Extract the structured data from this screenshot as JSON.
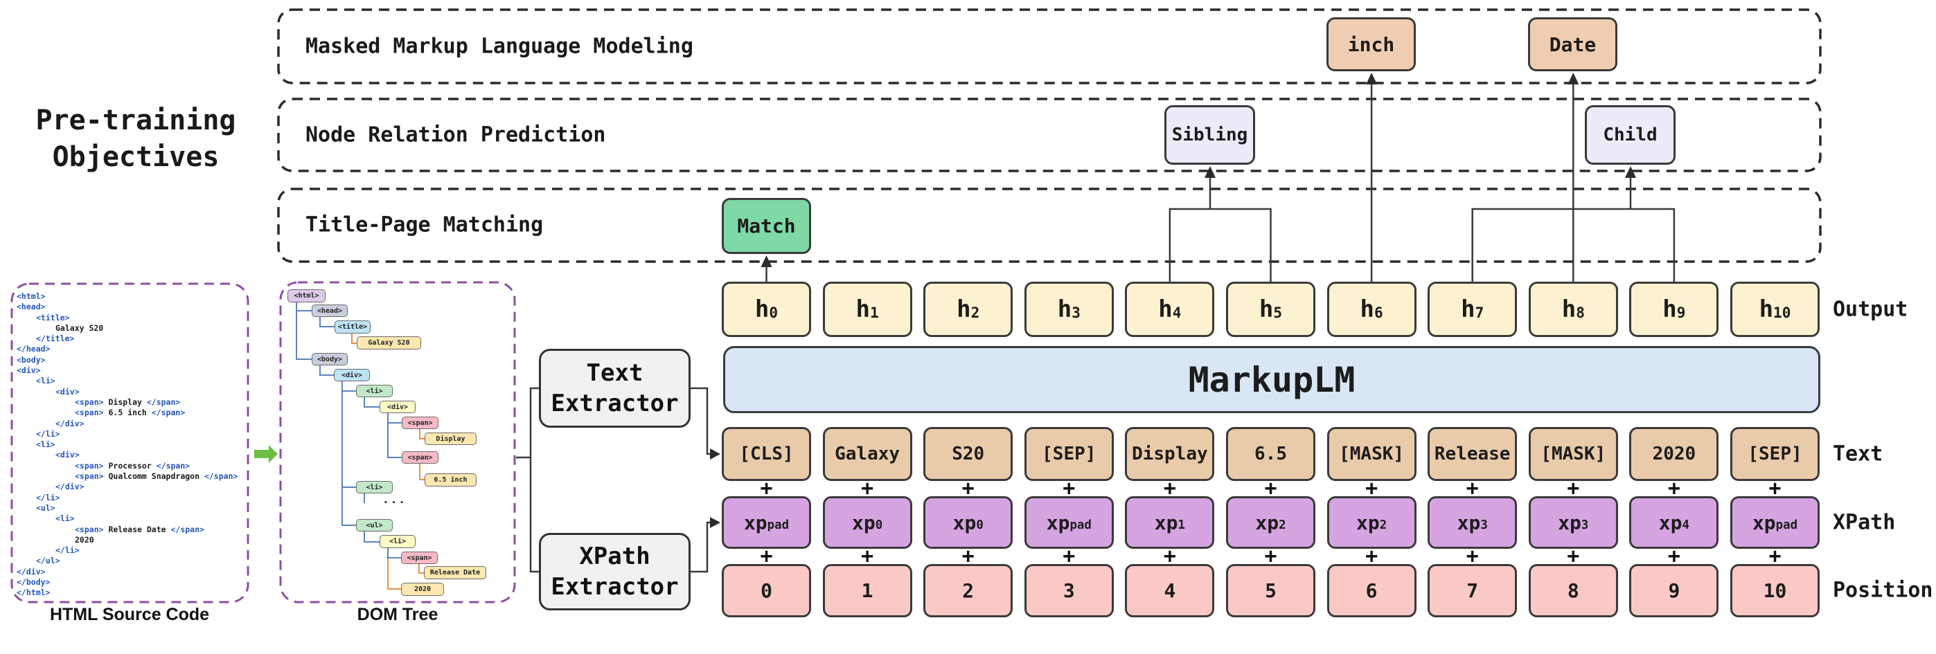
{
  "figure_title": {
    "line1": "Pre-training",
    "line2": "Objectives"
  },
  "objectives": [
    {
      "label": "Masked Markup Language Modeling"
    },
    {
      "label": "Node Relation Prediction"
    },
    {
      "label": "Title-Page Matching"
    }
  ],
  "predictions": {
    "match": "Match",
    "sibling": "Sibling",
    "child": "Child",
    "inch": "inch",
    "date": "Date"
  },
  "model_name": "MarkupLM",
  "extractors": {
    "text_line1": "Text",
    "text_line2": "Extractor",
    "xpath_line1": "XPath",
    "xpath_line2": "Extractor"
  },
  "row_labels": {
    "output": "Output",
    "text": "Text",
    "xpath": "XPath",
    "position": "Position"
  },
  "plus_symbol": "+",
  "tokens": {
    "output": [
      [
        "h",
        "0"
      ],
      [
        "h",
        "1"
      ],
      [
        "h",
        "2"
      ],
      [
        "h",
        "3"
      ],
      [
        "h",
        "4"
      ],
      [
        "h",
        "5"
      ],
      [
        "h",
        "6"
      ],
      [
        "h",
        "7"
      ],
      [
        "h",
        "8"
      ],
      [
        "h",
        "9"
      ],
      [
        "h",
        "10"
      ]
    ],
    "text": [
      "[CLS]",
      "Galaxy",
      "S20",
      "[SEP]",
      "Display",
      "6.5",
      "[MASK]",
      "Release",
      "[MASK]",
      "2020",
      "[SEP]"
    ],
    "xpath": [
      [
        "xp",
        "pad"
      ],
      [
        "xp",
        "0"
      ],
      [
        "xp",
        "0"
      ],
      [
        "xp",
        "pad"
      ],
      [
        "xp",
        "1"
      ],
      [
        "xp",
        "2"
      ],
      [
        "xp",
        "2"
      ],
      [
        "xp",
        "3"
      ],
      [
        "xp",
        "3"
      ],
      [
        "xp",
        "4"
      ],
      [
        "xp",
        "pad"
      ]
    ],
    "position": [
      "0",
      "1",
      "2",
      "3",
      "4",
      "5",
      "6",
      "7",
      "8",
      "9",
      "10"
    ]
  },
  "html_panel": {
    "caption": "HTML Source Code",
    "code": [
      {
        "ind": 0,
        "seg": [
          [
            "tag",
            "<html>"
          ]
        ]
      },
      {
        "ind": 0,
        "seg": [
          [
            "tag",
            "<head>"
          ]
        ]
      },
      {
        "ind": 1,
        "seg": [
          [
            "tag",
            "<title>"
          ]
        ]
      },
      {
        "ind": 2,
        "seg": [
          [
            "txt",
            "Galaxy S20"
          ]
        ]
      },
      {
        "ind": 1,
        "seg": [
          [
            "tag",
            "</title>"
          ]
        ]
      },
      {
        "ind": 0,
        "seg": [
          [
            "tag",
            "</head>"
          ]
        ]
      },
      {
        "ind": 0,
        "seg": [
          [
            "tag",
            "<body>"
          ]
        ]
      },
      {
        "ind": 0,
        "seg": [
          [
            "tag",
            "<div>"
          ]
        ]
      },
      {
        "ind": 1,
        "seg": [
          [
            "tag",
            "<li>"
          ]
        ]
      },
      {
        "ind": 2,
        "seg": [
          [
            "tag",
            "<div>"
          ]
        ]
      },
      {
        "ind": 3,
        "seg": [
          [
            "tag",
            "<span>"
          ],
          [
            "txt",
            " Display "
          ],
          [
            "tag",
            "</span>"
          ]
        ]
      },
      {
        "ind": 3,
        "seg": [
          [
            "tag",
            "<span>"
          ],
          [
            "txt",
            " 6.5 inch "
          ],
          [
            "tag",
            "</span>"
          ]
        ]
      },
      {
        "ind": 2,
        "seg": [
          [
            "tag",
            "</div>"
          ]
        ]
      },
      {
        "ind": 1,
        "seg": [
          [
            "tag",
            "</li>"
          ]
        ]
      },
      {
        "ind": 1,
        "seg": [
          [
            "tag",
            "<li>"
          ]
        ]
      },
      {
        "ind": 2,
        "seg": [
          [
            "tag",
            "<div>"
          ]
        ]
      },
      {
        "ind": 3,
        "seg": [
          [
            "tag",
            "<span>"
          ],
          [
            "txt",
            " Processor "
          ],
          [
            "tag",
            "</span>"
          ]
        ]
      },
      {
        "ind": 3,
        "seg": [
          [
            "tag",
            "<span>"
          ],
          [
            "txt",
            " Qualcomm Snapdragon "
          ],
          [
            "tag",
            "</span>"
          ]
        ]
      },
      {
        "ind": 2,
        "seg": [
          [
            "tag",
            "</div>"
          ]
        ]
      },
      {
        "ind": 1,
        "seg": [
          [
            "tag",
            "</li>"
          ]
        ]
      },
      {
        "ind": 1,
        "seg": [
          [
            "tag",
            "<ul>"
          ]
        ]
      },
      {
        "ind": 2,
        "seg": [
          [
            "tag",
            "<li>"
          ]
        ]
      },
      {
        "ind": 3,
        "seg": [
          [
            "tag",
            "<span>"
          ],
          [
            "txt",
            " Release Date "
          ],
          [
            "tag",
            "</span>"
          ]
        ]
      },
      {
        "ind": 3,
        "seg": [
          [
            "txt",
            "2020"
          ]
        ]
      },
      {
        "ind": 2,
        "seg": [
          [
            "tag",
            "</li>"
          ]
        ]
      },
      {
        "ind": 1,
        "seg": [
          [
            "tag",
            "</ul>"
          ]
        ]
      },
      {
        "ind": 0,
        "seg": [
          [
            "tag",
            "</div>"
          ]
        ]
      },
      {
        "ind": 0,
        "seg": [
          [
            "tag",
            "</body>"
          ]
        ]
      },
      {
        "ind": 0,
        "seg": [
          [
            "tag",
            "</html>"
          ]
        ]
      }
    ]
  },
  "dom_panel": {
    "caption": "DOM Tree",
    "ellipsis": "...",
    "nodes": [
      "<html>",
      "<head>",
      "<title>",
      "Galaxy S20",
      "<body>",
      "<div>",
      "<li>",
      "<div>",
      "<span>",
      "Display",
      "<span>",
      "6.5 inch",
      "<li>",
      "<ul>",
      "<li>",
      "<span>",
      "Release Date",
      "2020"
    ]
  },
  "colors": {
    "output_fill": "#FCF2CF",
    "model_fill": "#D9E6F5",
    "text_fill": "#EACBA9",
    "xpath_fill": "#D5A4E1",
    "position_fill": "#FAC9C6",
    "match_fill": "#7ED9A6",
    "masked_pred_fill": "#F0CDB0",
    "relation_fill": "#EBEBF9",
    "extractor_fill": "#F1F1F1",
    "code_tag_blue": "#2456B8",
    "panel_dash_purple": "#8C4FA6",
    "flow_arrow_green": "#6CBE45",
    "tree_link_blue": "#5B82C2",
    "tree_link_orange": "#E8913D",
    "box_border": "#3a3a3a"
  }
}
